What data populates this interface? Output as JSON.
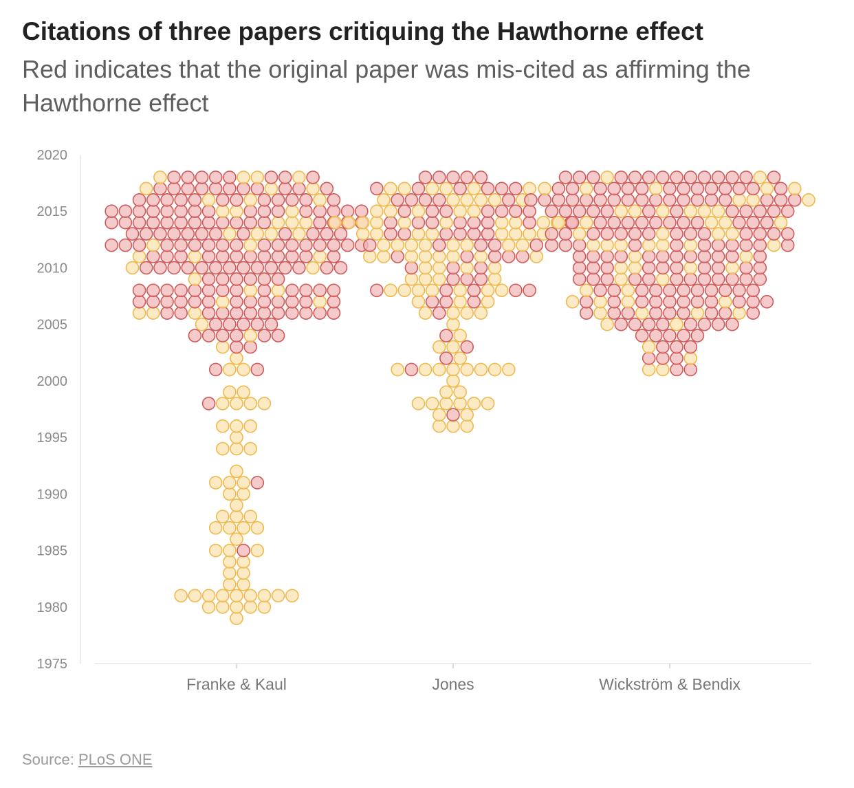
{
  "chart_data": {
    "type": "scatter",
    "subtype": "beeswarm",
    "title": "Citations of three papers critiquing the Hawthorne effect",
    "subtitle": "Red indicates that the original paper was mis-cited as affirming the Hawthorne effect",
    "categories": [
      "Franke & Kaul",
      "Jones",
      "Wickström & Bendix"
    ],
    "y_ticks": [
      1975,
      1980,
      1985,
      1990,
      1995,
      2000,
      2005,
      2010,
      2015,
      2020
    ],
    "ylim": [
      1975,
      2020
    ],
    "grid": false,
    "colors": {
      "miscited_fill": "#f2b8b8",
      "miscited_stroke": "#d05a5a",
      "other_fill": "#fbe3b2",
      "other_stroke": "#efb94e"
    },
    "series": [
      {
        "category": "Franke & Kaul",
        "counts_by_year": [
          [
            1979,
            0,
            1
          ],
          [
            1980,
            0,
            5
          ],
          [
            1981,
            0,
            9
          ],
          [
            1982,
            0,
            2
          ],
          [
            1983,
            0,
            2
          ],
          [
            1984,
            0,
            2
          ],
          [
            1985,
            1,
            3
          ],
          [
            1986,
            0,
            1
          ],
          [
            1987,
            0,
            4
          ],
          [
            1988,
            0,
            3
          ],
          [
            1989,
            0,
            1
          ],
          [
            1990,
            0,
            2
          ],
          [
            1991,
            1,
            3
          ],
          [
            1992,
            0,
            1
          ],
          [
            1994,
            0,
            3
          ],
          [
            1995,
            0,
            1
          ],
          [
            1996,
            0,
            3
          ],
          [
            1998,
            1,
            4
          ],
          [
            1999,
            0,
            2
          ],
          [
            2001,
            2,
            2
          ],
          [
            2002,
            0,
            1
          ],
          [
            2003,
            2,
            1
          ],
          [
            2004,
            6,
            1
          ],
          [
            2005,
            5,
            1
          ],
          [
            2006,
            12,
            3
          ],
          [
            2007,
            13,
            2
          ],
          [
            2008,
            13,
            2
          ],
          [
            2009,
            6,
            1
          ],
          [
            2010,
            14,
            2
          ],
          [
            2011,
            12,
            3
          ],
          [
            2012,
            17,
            2
          ],
          [
            2013,
            12,
            4
          ],
          [
            2014,
            16,
            3
          ],
          [
            2015,
            16,
            3
          ],
          [
            2016,
            12,
            3
          ],
          [
            2017,
            11,
            3
          ],
          [
            2018,
            8,
            4
          ]
        ]
      },
      {
        "category": "Jones",
        "counts_by_year": [
          [
            1996,
            0,
            3
          ],
          [
            1997,
            1,
            2
          ],
          [
            1998,
            0,
            6
          ],
          [
            1999,
            0,
            2
          ],
          [
            2000,
            0,
            1
          ],
          [
            2001,
            1,
            8
          ],
          [
            2002,
            1,
            1
          ],
          [
            2003,
            1,
            2
          ],
          [
            2004,
            1,
            1
          ],
          [
            2005,
            0,
            1
          ],
          [
            2006,
            1,
            4
          ],
          [
            2007,
            3,
            3
          ],
          [
            2008,
            5,
            7
          ],
          [
            2009,
            3,
            4
          ],
          [
            2010,
            3,
            4
          ],
          [
            2011,
            5,
            8
          ],
          [
            2012,
            5,
            8
          ],
          [
            2013,
            6,
            8
          ],
          [
            2014,
            8,
            10
          ],
          [
            2015,
            7,
            5
          ],
          [
            2016,
            5,
            6
          ],
          [
            2017,
            6,
            6
          ],
          [
            2018,
            5,
            0
          ]
        ]
      },
      {
        "category": "Wickström & Bendix",
        "counts_by_year": [
          [
            2001,
            2,
            2
          ],
          [
            2002,
            3,
            1
          ],
          [
            2003,
            3,
            1
          ],
          [
            2004,
            5,
            0
          ],
          [
            2005,
            8,
            2
          ],
          [
            2006,
            9,
            4
          ],
          [
            2007,
            11,
            4
          ],
          [
            2008,
            11,
            2
          ],
          [
            2009,
            12,
            2
          ],
          [
            2010,
            10,
            4
          ],
          [
            2011,
            12,
            2
          ],
          [
            2012,
            11,
            7
          ],
          [
            2013,
            14,
            4
          ],
          [
            2014,
            12,
            5
          ],
          [
            2015,
            12,
            6
          ],
          [
            2016,
            18,
            3
          ],
          [
            2017,
            14,
            5
          ],
          [
            2018,
            14,
            2
          ]
        ]
      }
    ],
    "counts_note": "each entry: [year, miscited_count, other_count]",
    "source_label": "Source: ",
    "source_link": "PLoS ONE"
  }
}
